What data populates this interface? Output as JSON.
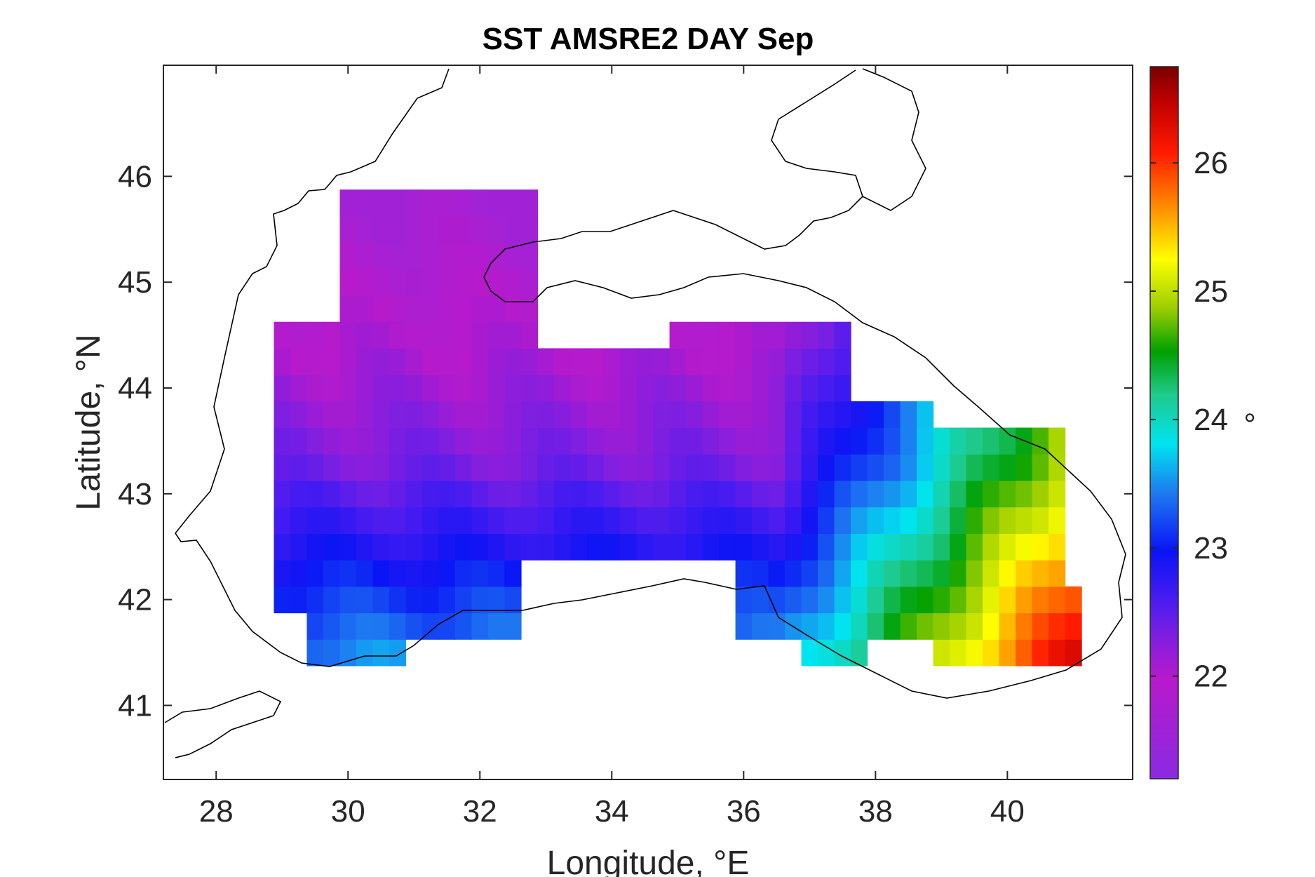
{
  "chart_data": {
    "type": "heatmap",
    "title": "SST AMSRE2 DAY Sep",
    "xlabel": "Longitude, °E",
    "ylabel": "Latitude, °N",
    "xlim": [
      27.2,
      41.9
    ],
    "ylim": [
      40.3,
      47.05
    ],
    "xticks": [
      28,
      30,
      32,
      34,
      36,
      38,
      40
    ],
    "yticks": [
      41,
      42,
      43,
      44,
      45,
      46
    ],
    "grid": false,
    "colorbar": {
      "label": "°",
      "range": [
        21.2,
        26.75
      ],
      "ticks": [
        22,
        23,
        24,
        25,
        26
      ],
      "position": "right"
    },
    "cell_size_deg": [
      0.25,
      0.25
    ],
    "coverage": {
      "lon_range": [
        28.75,
        41.0
      ],
      "lat_range": [
        41.25,
        45.95
      ],
      "value_range": [
        21.6,
        26.7
      ]
    },
    "gradient_profile": {
      "description": "Sea surface temperature increases from northwest (~22 °) to southeast (~26.5 °)",
      "west_north_max": 21.7,
      "east_south_max": 26.7
    }
  }
}
